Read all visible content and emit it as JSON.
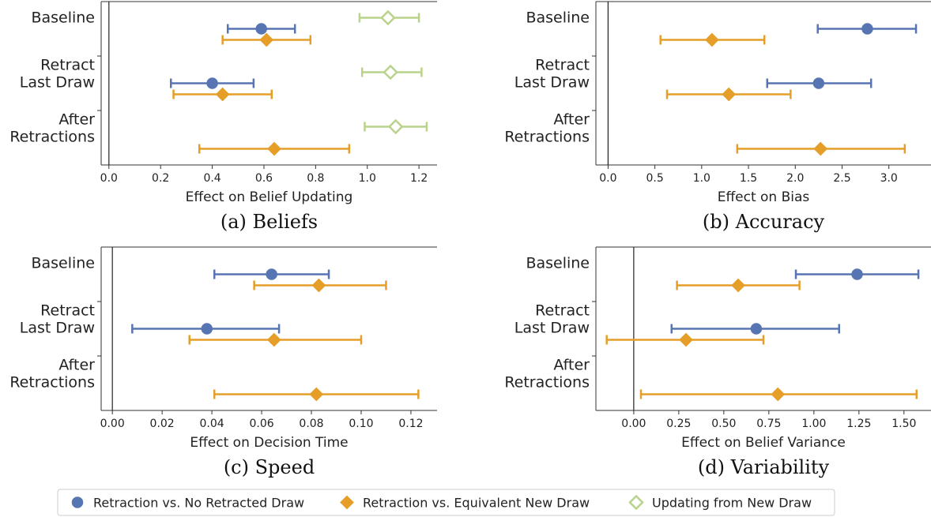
{
  "legend": {
    "entries": [
      {
        "key": "retraction_vs_no_retracted",
        "label": "Retraction vs. No Retracted Draw",
        "color": "#5875b3",
        "marker": "circle",
        "filled": true
      },
      {
        "key": "retraction_vs_equivalent",
        "label": "Retraction vs. Equivalent New Draw",
        "color": "#e59e28",
        "marker": "diamond",
        "filled": true
      },
      {
        "key": "updating_from_new",
        "label": "Updating from New Draw",
        "color": "#b9d38c",
        "marker": "diamond",
        "filled": false
      }
    ]
  },
  "chart_data": [
    {
      "type": "scatter",
      "caption": "(a) Beliefs",
      "xlabel": "Effect on Belief Updating",
      "categories": [
        "Baseline",
        "Retract\nLast Draw",
        "After\nRetractions"
      ],
      "xlim": [
        -0.03,
        1.27
      ],
      "xticks": [
        0.0,
        0.2,
        0.4,
        0.6,
        0.8,
        1.0,
        1.2
      ],
      "xtick_labels": [
        "0.0",
        "0.2",
        "0.4",
        "0.6",
        "0.8",
        "1.0",
        "1.2"
      ],
      "series": [
        {
          "key": "retraction_vs_no_retracted",
          "points": [
            {
              "category": 0,
              "value": 0.59,
              "lo": 0.46,
              "hi": 0.72
            },
            {
              "category": 1,
              "value": 0.4,
              "lo": 0.24,
              "hi": 0.56
            }
          ]
        },
        {
          "key": "retraction_vs_equivalent",
          "points": [
            {
              "category": 0,
              "value": 0.61,
              "lo": 0.44,
              "hi": 0.78
            },
            {
              "category": 1,
              "value": 0.44,
              "lo": 0.25,
              "hi": 0.63
            },
            {
              "category": 2,
              "value": 0.64,
              "lo": 0.35,
              "hi": 0.93
            }
          ]
        },
        {
          "key": "updating_from_new",
          "points": [
            {
              "category": 0,
              "value": 1.08,
              "lo": 0.97,
              "hi": 1.2
            },
            {
              "category": 1,
              "value": 1.09,
              "lo": 0.98,
              "hi": 1.21
            },
            {
              "category": 2,
              "value": 1.11,
              "lo": 0.99,
              "hi": 1.23
            }
          ]
        }
      ]
    },
    {
      "type": "scatter",
      "caption": "(b) Accuracy",
      "xlabel": "Effect on Bias",
      "categories": [
        "Baseline",
        "Retract\nLast Draw",
        "After\nRetractions"
      ],
      "xlim": [
        -0.13,
        3.45
      ],
      "xticks": [
        0.0,
        0.5,
        1.0,
        1.5,
        2.0,
        2.5,
        3.0
      ],
      "xtick_labels": [
        "0.0",
        "0.5",
        "1.0",
        "1.5",
        "2.0",
        "2.5",
        "3.0"
      ],
      "series": [
        {
          "key": "retraction_vs_no_retracted",
          "points": [
            {
              "category": 0,
              "value": 2.77,
              "lo": 2.24,
              "hi": 3.29
            },
            {
              "category": 1,
              "value": 2.25,
              "lo": 1.7,
              "hi": 2.81
            }
          ]
        },
        {
          "key": "retraction_vs_equivalent",
          "points": [
            {
              "category": 0,
              "value": 1.11,
              "lo": 0.56,
              "hi": 1.67
            },
            {
              "category": 1,
              "value": 1.29,
              "lo": 0.63,
              "hi": 1.95
            },
            {
              "category": 2,
              "value": 2.27,
              "lo": 1.38,
              "hi": 3.17
            }
          ]
        }
      ]
    },
    {
      "type": "scatter",
      "caption": "(c) Speed",
      "xlabel": "Effect on Decision Time",
      "categories": [
        "Baseline",
        "Retract\nLast Draw",
        "After\nRetractions"
      ],
      "xlim": [
        -0.0045,
        0.1305
      ],
      "xticks": [
        0.0,
        0.02,
        0.04,
        0.06,
        0.08,
        0.1,
        0.12
      ],
      "xtick_labels": [
        "0.00",
        "0.02",
        "0.04",
        "0.06",
        "0.08",
        "0.10",
        "0.12"
      ],
      "series": [
        {
          "key": "retraction_vs_no_retracted",
          "points": [
            {
              "category": 0,
              "value": 0.064,
              "lo": 0.041,
              "hi": 0.087
            },
            {
              "category": 1,
              "value": 0.038,
              "lo": 0.008,
              "hi": 0.067
            }
          ]
        },
        {
          "key": "retraction_vs_equivalent",
          "points": [
            {
              "category": 0,
              "value": 0.083,
              "lo": 0.057,
              "hi": 0.11
            },
            {
              "category": 1,
              "value": 0.065,
              "lo": 0.031,
              "hi": 0.1
            },
            {
              "category": 2,
              "value": 0.082,
              "lo": 0.041,
              "hi": 0.123
            }
          ]
        }
      ]
    },
    {
      "type": "scatter",
      "caption": "(d) Variability",
      "xlabel": "Effect on Belief Variance",
      "categories": [
        "Baseline",
        "Retract\nLast Draw",
        "After\nRetractions"
      ],
      "xlim": [
        -0.21,
        1.65
      ],
      "xticks": [
        0.0,
        0.25,
        0.5,
        0.75,
        1.0,
        1.25,
        1.5
      ],
      "xtick_labels": [
        "0.00",
        "0.25",
        "0.50",
        "0.75",
        "1.00",
        "1.25",
        "1.50"
      ],
      "series": [
        {
          "key": "retraction_vs_no_retracted",
          "points": [
            {
              "category": 0,
              "value": 1.24,
              "lo": 0.9,
              "hi": 1.58
            },
            {
              "category": 1,
              "value": 0.68,
              "lo": 0.21,
              "hi": 1.14
            }
          ]
        },
        {
          "key": "retraction_vs_equivalent",
          "points": [
            {
              "category": 0,
              "value": 0.58,
              "lo": 0.24,
              "hi": 0.92
            },
            {
              "category": 1,
              "value": 0.29,
              "lo": -0.15,
              "hi": 0.72
            },
            {
              "category": 2,
              "value": 0.8,
              "lo": 0.04,
              "hi": 1.57
            }
          ]
        }
      ]
    }
  ]
}
